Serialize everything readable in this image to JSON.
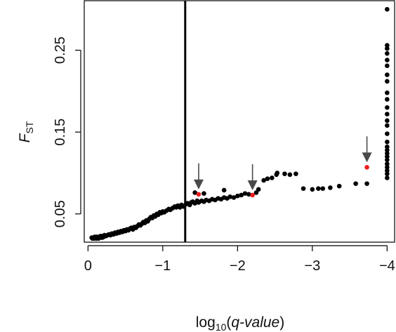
{
  "chart_data": {
    "type": "scatter",
    "title": "",
    "xlabel": {
      "prefix": "log",
      "subscript": "10",
      "open": "(",
      "italic": "q-value",
      "close": ")"
    },
    "ylabel": {
      "main": "F",
      "subscript": "ST"
    },
    "xlim": [
      0.05,
      -4.1
    ],
    "ylim": [
      0.0155,
      0.3105
    ],
    "x_ticks": [
      0,
      -1,
      -2,
      -3,
      -4
    ],
    "x_tick_labels": [
      "0",
      "−1",
      "−2",
      "−3",
      "−4"
    ],
    "y_ticks": [
      0.05,
      0.15,
      0.25
    ],
    "y_tick_labels": [
      "0.05",
      "0.15",
      "0.25"
    ],
    "threshold_line": {
      "x": -1.3
    },
    "colors": {
      "point": "#000000",
      "highlight": "#ee1c1c",
      "arrow": "#4a4a4a",
      "axis": "#000000"
    },
    "arrow_targets": [
      {
        "x": -1.48,
        "y": 0.074
      },
      {
        "x": -2.2,
        "y": 0.073
      },
      {
        "x": -3.73,
        "y": 0.107
      }
    ],
    "series": [
      {
        "role": "loci",
        "points": [
          [
            -0.05,
            0.021
          ],
          [
            -0.06,
            0.02
          ],
          [
            -0.07,
            0.021
          ],
          [
            -0.08,
            0.02
          ],
          [
            -0.09,
            0.022
          ],
          [
            -0.1,
            0.021
          ],
          [
            -0.11,
            0.02
          ],
          [
            -0.12,
            0.022
          ],
          [
            -0.13,
            0.021
          ],
          [
            -0.14,
            0.02
          ],
          [
            -0.15,
            0.022
          ],
          [
            -0.16,
            0.021
          ],
          [
            -0.17,
            0.023
          ],
          [
            -0.18,
            0.022
          ],
          [
            -0.19,
            0.021
          ],
          [
            -0.2,
            0.023
          ],
          [
            -0.21,
            0.022
          ],
          [
            -0.22,
            0.024
          ],
          [
            -0.24,
            0.023
          ],
          [
            -0.26,
            0.024
          ],
          [
            -0.28,
            0.025
          ],
          [
            -0.3,
            0.024
          ],
          [
            -0.32,
            0.026
          ],
          [
            -0.34,
            0.025
          ],
          [
            -0.36,
            0.027
          ],
          [
            -0.38,
            0.026
          ],
          [
            -0.4,
            0.028
          ],
          [
            -0.42,
            0.027
          ],
          [
            -0.44,
            0.029
          ],
          [
            -0.46,
            0.028
          ],
          [
            -0.48,
            0.03
          ],
          [
            -0.5,
            0.029
          ],
          [
            -0.52,
            0.031
          ],
          [
            -0.54,
            0.03
          ],
          [
            -0.56,
            0.032
          ],
          [
            -0.58,
            0.033
          ],
          [
            -0.6,
            0.031
          ],
          [
            -0.62,
            0.034
          ],
          [
            -0.64,
            0.033
          ],
          [
            -0.66,
            0.035
          ],
          [
            -0.68,
            0.037
          ],
          [
            -0.7,
            0.036
          ],
          [
            -0.72,
            0.038
          ],
          [
            -0.74,
            0.04
          ],
          [
            -0.76,
            0.039
          ],
          [
            -0.78,
            0.042
          ],
          [
            -0.8,
            0.041
          ],
          [
            -0.82,
            0.044
          ],
          [
            -0.84,
            0.046
          ],
          [
            -0.86,
            0.045
          ],
          [
            -0.88,
            0.048
          ],
          [
            -0.9,
            0.047
          ],
          [
            -0.92,
            0.05
          ],
          [
            -0.94,
            0.049
          ],
          [
            -0.96,
            0.052
          ],
          [
            -0.98,
            0.051
          ],
          [
            -1.0,
            0.053
          ],
          [
            -1.02,
            0.052
          ],
          [
            -1.05,
            0.054
          ],
          [
            -1.08,
            0.056
          ],
          [
            -1.1,
            0.055
          ],
          [
            -1.13,
            0.057
          ],
          [
            -1.16,
            0.059
          ],
          [
            -1.18,
            0.058
          ],
          [
            -1.2,
            0.06
          ],
          [
            -1.23,
            0.058
          ],
          [
            -1.25,
            0.061
          ],
          [
            -1.28,
            0.059
          ],
          [
            -1.31,
            0.062
          ],
          [
            -1.33,
            0.063
          ],
          [
            -1.36,
            0.061
          ],
          [
            -1.38,
            0.064
          ],
          [
            -1.4,
            0.065
          ],
          [
            -1.43,
            0.063
          ],
          [
            -1.46,
            0.066
          ],
          [
            -1.48,
            0.064
          ],
          [
            -1.52,
            0.066
          ],
          [
            -1.55,
            0.065
          ],
          [
            -1.58,
            0.067
          ],
          [
            -1.62,
            0.066
          ],
          [
            -1.66,
            0.068
          ],
          [
            -1.7,
            0.067
          ],
          [
            -1.74,
            0.069
          ],
          [
            -1.78,
            0.068
          ],
          [
            -1.82,
            0.07
          ],
          [
            -1.86,
            0.069
          ],
          [
            -1.9,
            0.071
          ],
          [
            -1.95,
            0.07
          ],
          [
            -2.0,
            0.072
          ],
          [
            -2.05,
            0.073
          ],
          [
            -2.1,
            0.075
          ],
          [
            -2.15,
            0.074
          ],
          [
            -2.25,
            0.076
          ],
          [
            -1.43,
            0.076
          ],
          [
            -1.55,
            0.075
          ],
          [
            -1.82,
            0.079
          ],
          [
            -2.28,
            0.08
          ],
          [
            -2.35,
            0.091
          ],
          [
            -2.4,
            0.093
          ],
          [
            -2.46,
            0.094
          ],
          [
            -2.53,
            0.1
          ],
          [
            -2.52,
            0.098
          ],
          [
            -2.63,
            0.099
          ],
          [
            -2.7,
            0.098
          ],
          [
            -2.78,
            0.099
          ],
          [
            -2.88,
            0.081
          ],
          [
            -3.0,
            0.08
          ],
          [
            -3.08,
            0.081
          ],
          [
            -3.14,
            0.081
          ],
          [
            -3.24,
            0.082
          ],
          [
            -3.36,
            0.084
          ],
          [
            -3.58,
            0.087
          ],
          [
            -3.73,
            0.087
          ],
          [
            -4.0,
            0.094
          ],
          [
            -4.0,
            0.099
          ],
          [
            -4.0,
            0.103
          ],
          [
            -4.0,
            0.107
          ],
          [
            -4.0,
            0.111
          ],
          [
            -4.0,
            0.116
          ],
          [
            -4.0,
            0.12
          ],
          [
            -4.0,
            0.124
          ],
          [
            -4.0,
            0.128
          ],
          [
            -4.0,
            0.132
          ],
          [
            -4.0,
            0.138
          ],
          [
            -4.0,
            0.148
          ],
          [
            -4.0,
            0.158
          ],
          [
            -4.0,
            0.164
          ],
          [
            -4.0,
            0.172
          ],
          [
            -4.0,
            0.18
          ],
          [
            -4.0,
            0.19
          ],
          [
            -4.0,
            0.198
          ],
          [
            -4.0,
            0.212
          ],
          [
            -4.0,
            0.22
          ],
          [
            -4.0,
            0.231
          ],
          [
            -4.0,
            0.238
          ],
          [
            -4.0,
            0.246
          ],
          [
            -4.0,
            0.252
          ],
          [
            -4.0,
            0.256
          ],
          [
            -4.0,
            0.3
          ]
        ]
      },
      {
        "role": "highlighted",
        "points": [
          [
            -1.48,
            0.074
          ],
          [
            -2.2,
            0.073
          ],
          [
            -3.73,
            0.107
          ]
        ]
      }
    ]
  }
}
